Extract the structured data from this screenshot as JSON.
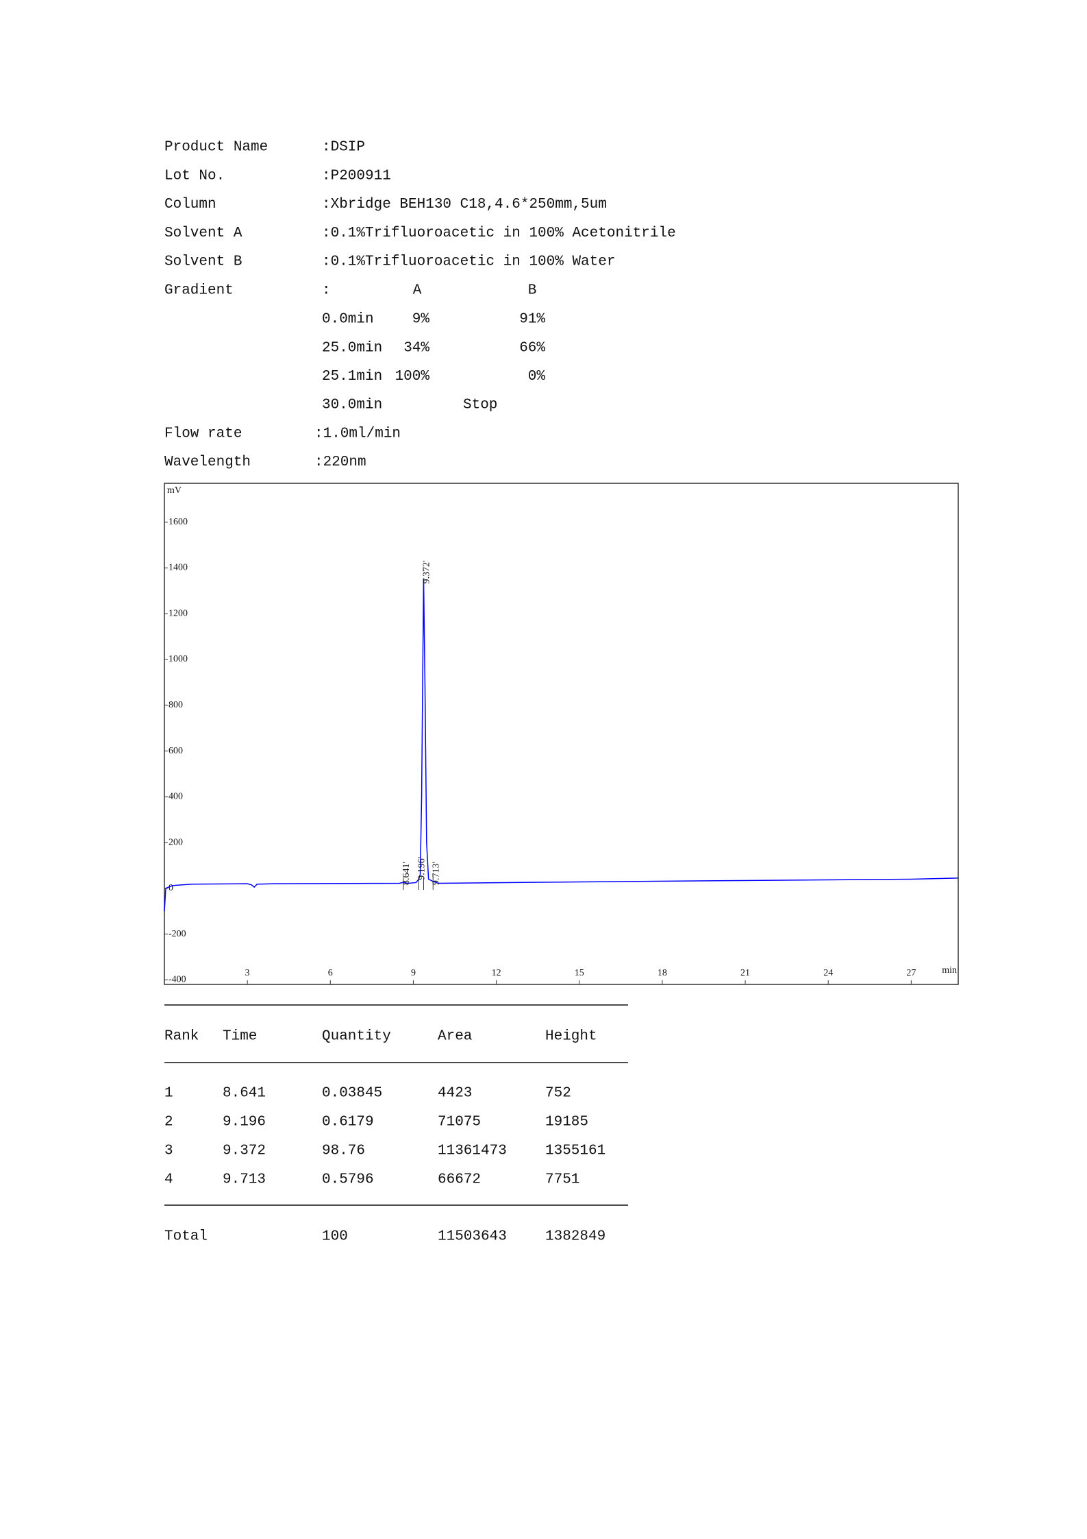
{
  "info": [
    {
      "label": "Product Name",
      "value": ":DSIP"
    },
    {
      "label": "Lot No.",
      "value": ":P200911"
    },
    {
      "label": "Column",
      "value": ":Xbridge BEH130 C18,4.6*250mm,5um"
    },
    {
      "label": "Solvent A",
      "value": ":0.1%Trifluoroacetic  in 100% Acetonitrile"
    },
    {
      "label": "Solvent B",
      "value": ":0.1%Trifluoroacetic  in 100% Water"
    }
  ],
  "gradient": {
    "label": "Gradient",
    "header": [
      ":",
      "A",
      "B"
    ],
    "rows": [
      [
        "0.0min",
        "9%",
        "91%"
      ],
      [
        "25.0min",
        "34%",
        "66%"
      ],
      [
        "25.1min",
        "100%",
        "0%"
      ]
    ],
    "stop_row": [
      "30.0min",
      "Stop"
    ]
  },
  "conditions": [
    {
      "label": "Flow rate",
      "value": ":1.0ml/min"
    },
    {
      "label": "Wavelength",
      "value": ":220nm"
    }
  ],
  "chart_data": {
    "type": "line",
    "y_label": "mV",
    "x_label": "min",
    "xlim": [
      0,
      28.7
    ],
    "ylim": [
      -420,
      1770
    ],
    "xticks": [
      3,
      6,
      9,
      12,
      15,
      18,
      21,
      24,
      27
    ],
    "yticks": [
      -400,
      -200,
      0,
      200,
      400,
      600,
      800,
      1000,
      1200,
      1400,
      1600
    ],
    "color": "#0000ff",
    "x": [
      0,
      0.05,
      0.3,
      1,
      3,
      3.15,
      3.25,
      3.35,
      4,
      8.5,
      8.641,
      8.8,
      9.1,
      9.196,
      9.25,
      9.3,
      9.372,
      9.42,
      9.48,
      9.55,
      9.713,
      9.9,
      15,
      20,
      27,
      28.7
    ],
    "values": [
      -100,
      0,
      12,
      18,
      20,
      15,
      5,
      18,
      20,
      22,
      26,
      22,
      25,
      40,
      60,
      400,
      1355,
      900,
      200,
      40,
      30,
      22,
      28,
      33,
      40,
      45
    ],
    "annotations": [
      {
        "value": 8.641,
        "label": "8.641'"
      },
      {
        "value": 9.196,
        "label": "9.196'"
      },
      {
        "value": 9.372,
        "label": "9.372'"
      },
      {
        "value": 9.713,
        "label": "9.713'"
      }
    ]
  },
  "table": {
    "header": [
      "Rank",
      "Time",
      "Quantity",
      "Area",
      "Height"
    ],
    "rows": [
      [
        "1",
        "8.641",
        "0.03845",
        "4423",
        "752"
      ],
      [
        "2",
        "9.196",
        "0.6179",
        "71075",
        "19185"
      ],
      [
        "3",
        "9.372",
        "98.76",
        "11361473",
        "1355161"
      ],
      [
        "4",
        "9.713",
        "0.5796",
        "66672",
        "7751"
      ]
    ],
    "total": [
      "Total",
      "100",
      "11503643",
      "1382849"
    ]
  }
}
